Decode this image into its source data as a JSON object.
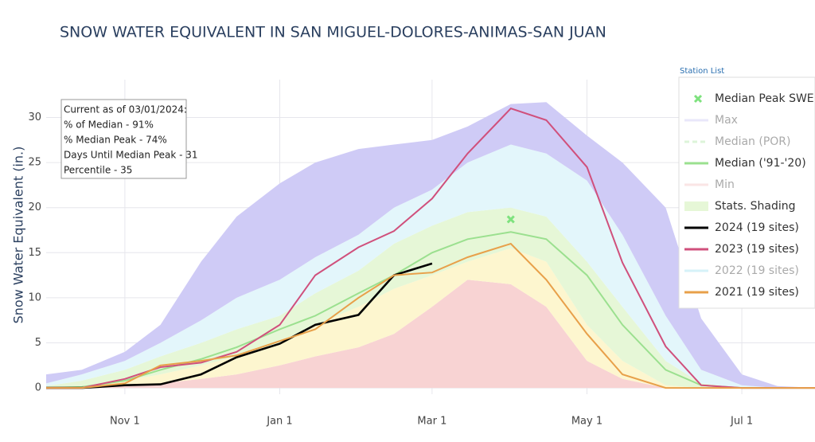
{
  "chart_data": {
    "type": "line",
    "title": "SNOW WATER EQUIVALENT IN SAN MIGUEL-DOLORES-ANIMAS-SAN JUAN",
    "ylabel": "Snow Water Equivalent (in.)",
    "station_list": "Station List",
    "x": [
      "Oct 1",
      "Oct 15",
      "Nov 1",
      "Nov 15",
      "Dec 1",
      "Dec 15",
      "Jan 1",
      "Jan 15",
      "Feb 1",
      "Feb 15",
      "Mar 1",
      "Mar 15",
      "Apr 1",
      "Apr 15",
      "May 1",
      "May 15",
      "Jun 1",
      "Jun 15",
      "Jul 1",
      "Jul 15",
      "Jul 31"
    ],
    "xticks": [
      "Nov 1",
      "Jan 1",
      "Mar 1",
      "May 1",
      "Jul 1"
    ],
    "ylim": [
      -0.7,
      34.2
    ],
    "yticks": [
      0,
      5,
      10,
      15,
      20,
      25,
      30
    ],
    "grid": true,
    "annotation": [
      "Current as of 03/01/2024:",
      "% of Median - 91%",
      "% Median Peak - 74%",
      "Days Until Median Peak - 31",
      "Percentile - 35"
    ],
    "peak": {
      "name": "Median Peak SWE",
      "color": "#7ee27e",
      "x": "Apr 1",
      "value": 18.7
    },
    "series": [
      {
        "name": "Max",
        "color": "#cfcbf6",
        "visible": false,
        "values": [
          1.5,
          2,
          4,
          7,
          14,
          19,
          22.7,
          25,
          26.5,
          27,
          27.5,
          29,
          31.5,
          31.7,
          28,
          25,
          20,
          7.7,
          1.5,
          0.2,
          0
        ]
      },
      {
        "name": "Median (POR)",
        "color": "#b5e8ad",
        "visible": false
      },
      {
        "name": "Median ('91-'20)",
        "color": "#9be08f",
        "visible": true,
        "values": [
          0,
          0.1,
          0.8,
          2,
          3.2,
          4.5,
          6.5,
          8,
          10.5,
          12.5,
          15,
          16.5,
          17.3,
          16.5,
          12.5,
          7,
          2,
          0.3,
          0,
          0,
          0
        ]
      },
      {
        "name": "Min",
        "color": "#f5c6c6",
        "visible": false,
        "values": [
          0,
          0,
          0,
          0,
          0,
          0,
          0,
          0,
          0,
          0,
          0,
          0,
          0,
          0,
          0,
          0,
          0,
          0,
          0,
          0,
          0
        ]
      },
      {
        "name": "2024 (19 sites)",
        "color": "#000000",
        "visible": true,
        "values": [
          0,
          0,
          0.3,
          0.4,
          1.5,
          3.4,
          4.9,
          7,
          8.1,
          12.5,
          13.8,
          null,
          null,
          null,
          null,
          null,
          null,
          null,
          null,
          null,
          null
        ]
      },
      {
        "name": "2023 (19 sites)",
        "color": "#d0507c",
        "visible": true,
        "values": [
          0,
          0,
          1,
          2.3,
          2.8,
          4,
          7,
          12.5,
          15.6,
          17.4,
          21,
          26,
          31,
          29.7,
          24.5,
          13.9,
          4.6,
          0.3,
          0,
          0,
          0
        ]
      },
      {
        "name": "2022 (19 sites)",
        "color": "#a5e3f0",
        "visible": false
      },
      {
        "name": "2021 (19 sites)",
        "color": "#e8a04a",
        "visible": true,
        "values": [
          0,
          0,
          0.5,
          2.5,
          3,
          3.6,
          5.2,
          6.5,
          10,
          12.5,
          12.8,
          14.5,
          16,
          12,
          6,
          1.5,
          0,
          0,
          0,
          0,
          0
        ]
      }
    ],
    "shading": {
      "name": "Stats. Shading",
      "color": "#e6f7d7",
      "bands": [
        {
          "color": "#f8d3d3",
          "values": [
            0,
            0,
            0.2,
            0.5,
            1,
            1.5,
            2.5,
            3.5,
            4.5,
            6,
            9,
            12,
            11.5,
            9,
            3,
            1,
            0,
            0,
            0,
            0,
            0
          ]
        },
        {
          "color": "#fdf6cf",
          "values": [
            0,
            0.2,
            0.8,
            1.5,
            2.5,
            3.5,
            5,
            7,
            9,
            11,
            12.5,
            14,
            15.5,
            14,
            7,
            3,
            0.3,
            0,
            0,
            0,
            0
          ]
        },
        {
          "color": "#e6f7d7",
          "values": [
            0.2,
            0.8,
            2,
            3.5,
            5,
            6.5,
            8,
            10.5,
            13,
            16,
            18,
            19.5,
            20,
            19,
            14,
            9,
            3,
            0.5,
            0,
            0,
            0
          ]
        },
        {
          "color": "#e3f6fb",
          "values": [
            0.5,
            1.5,
            3,
            5,
            7.5,
            10,
            12,
            14.5,
            17,
            20,
            22,
            25,
            27,
            26,
            23,
            17,
            8,
            2,
            0.3,
            0,
            0
          ]
        }
      ]
    }
  }
}
